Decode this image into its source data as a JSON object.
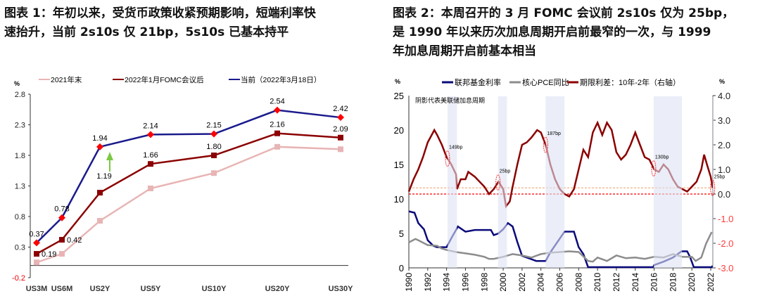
{
  "left": {
    "title": "图表 1：年初以来，受货币政策收紧预期影响，短端利率快速抬升，当前 2s10s 仅 21bp，5s10s 已基本持平",
    "title_lines": [
      "图表 1：年初以来，受货币政策收紧预期影响，短端利率快",
      "速抬升，当前 2s10s 仅 21bp，5s10s 已基本持平"
    ]
  },
  "right": {
    "title_lines": [
      "图表 2：本周召开的 3 月 FOMC 会议前 2s10s 仅为 25bp，",
      "是 1990 年以来历次加息周期开启前最窄的一次，与 1999",
      "年加息周期开启前基本相当"
    ]
  },
  "chart_data": [
    {
      "type": "line",
      "ylabel": "%",
      "ylim": [
        -0.2,
        2.8
      ],
      "yticks": [
        -0.2,
        0.3,
        0.8,
        1.3,
        1.8,
        2.3,
        2.8
      ],
      "legend": "top",
      "categories": [
        "US3M",
        "US6M",
        "US2Y",
        "US5Y",
        "US10Y",
        "US20Y",
        "US30Y"
      ],
      "series": [
        {
          "name": "2021年末",
          "color": "#e8b4b4",
          "marker": "square",
          "values": [
            0.05,
            0.19,
            0.73,
            1.26,
            1.51,
            1.94,
            1.9
          ]
        },
        {
          "name": "2022年1月FOMC会议后",
          "color": "#8b0000",
          "marker": "square",
          "values": [
            0.19,
            0.42,
            1.19,
            1.66,
            1.8,
            2.16,
            2.09
          ],
          "labels": [
            "0.19",
            "0.42",
            "1.19",
            "1.66",
            "1.80",
            "2.16",
            "2.09"
          ]
        },
        {
          "name": "当前（2022年3月18日）",
          "color": "#1a1a8c",
          "marker": "diamond",
          "marker_color": "#ff0000",
          "values": [
            0.37,
            0.78,
            1.94,
            2.14,
            2.15,
            2.54,
            2.42
          ],
          "labels": [
            "0.37",
            "0.78",
            "1.94",
            "2.14",
            "2.15",
            "2.54",
            "2.42"
          ]
        }
      ],
      "annotation": "green up arrow at US2Y",
      "arrow_color": "#7ac943"
    },
    {
      "type": "line",
      "ylabel_left": "%",
      "ylabel_right": "%",
      "ylim_left": [
        0,
        25
      ],
      "ylim_right": [
        -3,
        4
      ],
      "yticks_left": [
        0,
        5,
        10,
        15,
        20,
        25
      ],
      "yticks_right": [
        "-3.0",
        "-2.0",
        "-1.0",
        "0.0",
        "1.0",
        "2.0",
        "3.0",
        "4.0"
      ],
      "xticks": [
        "1990",
        "1992",
        "1994",
        "1996",
        "1998",
        "2000",
        "2002",
        "2004",
        "2006",
        "2008",
        "2010",
        "2012",
        "2014",
        "2016",
        "2018",
        "2020",
        "2022"
      ],
      "note": "阴影代表美联储加息周期",
      "shaded": [
        [
          1994.1,
          1995.1
        ],
        [
          1999.45,
          2000.4
        ],
        [
          2004.5,
          2006.5
        ],
        [
          2015.95,
          2018.95
        ],
        [
          2022.2,
          2022.3
        ]
      ],
      "annotations": [
        {
          "x": 1994.1,
          "text": "149bp"
        },
        {
          "x": 1999.45,
          "text": "25bp"
        },
        {
          "x": 2004.5,
          "text": "187bp"
        },
        {
          "x": 2015.95,
          "text": "130bp"
        },
        {
          "x": 2022.2,
          "text": "25bp"
        }
      ],
      "series": [
        {
          "name": "联邦基金利率",
          "axis": "left",
          "color": "#0a0a7a",
          "points": [
            [
              1990,
              8.2
            ],
            [
              1990.6,
              8
            ],
            [
              1991,
              6.5
            ],
            [
              1991.6,
              5.6
            ],
            [
              1992,
              4
            ],
            [
              1992.6,
              3.2
            ],
            [
              1993,
              3
            ],
            [
              1994,
              3
            ],
            [
              1994.5,
              4.3
            ],
            [
              1995,
              5.5
            ],
            [
              1995.2,
              6
            ],
            [
              1996,
              5.25
            ],
            [
              1997,
              5.5
            ],
            [
              1998.7,
              5.5
            ],
            [
              1999,
              4.75
            ],
            [
              1999.5,
              5
            ],
            [
              2000,
              5.6
            ],
            [
              2000.5,
              6.5
            ],
            [
              2001,
              6
            ],
            [
              2001.5,
              3.75
            ],
            [
              2002,
              1.75
            ],
            [
              2003,
              1.25
            ],
            [
              2003.5,
              1
            ],
            [
              2004.5,
              1
            ],
            [
              2005,
              2.25
            ],
            [
              2006,
              4.25
            ],
            [
              2006.5,
              5.25
            ],
            [
              2007.5,
              5.25
            ],
            [
              2008,
              3
            ],
            [
              2008.5,
              2
            ],
            [
              2009,
              0.1
            ],
            [
              2015.9,
              0.1
            ],
            [
              2016,
              0.4
            ],
            [
              2017,
              0.9
            ],
            [
              2018,
              1.5
            ],
            [
              2018.9,
              2.4
            ],
            [
              2019.5,
              2.4
            ],
            [
              2019.8,
              1.6
            ],
            [
              2020.2,
              0.1
            ],
            [
              2022.1,
              0.1
            ],
            [
              2022.2,
              0.3
            ]
          ]
        },
        {
          "name": "核心PCE同比",
          "axis": "left",
          "color": "#8c8c8c",
          "points": [
            [
              1990,
              3.7
            ],
            [
              1990.7,
              4.2
            ],
            [
              1991,
              4
            ],
            [
              1992,
              3.3
            ],
            [
              1993,
              3.2
            ],
            [
              1993.5,
              2.8
            ],
            [
              1994,
              2.6
            ],
            [
              1995,
              2.3
            ],
            [
              1996,
              2.1
            ],
            [
              1997,
              1.9
            ],
            [
              1998,
              1.6
            ],
            [
              1998.5,
              1.3
            ],
            [
              1999,
              1.3
            ],
            [
              2000,
              1.6
            ],
            [
              2001,
              2
            ],
            [
              2002,
              1.8
            ],
            [
              2003,
              1.5
            ],
            [
              2004,
              2
            ],
            [
              2005,
              2.2
            ],
            [
              2006,
              2.3
            ],
            [
              2007,
              2.4
            ],
            [
              2008,
              2.3
            ],
            [
              2009,
              1
            ],
            [
              2009.5,
              0.9
            ],
            [
              2010,
              1.5
            ],
            [
              2011,
              1
            ],
            [
              2012,
              1.8
            ],
            [
              2013,
              1.4
            ],
            [
              2014,
              1.5
            ],
            [
              2015,
              1.3
            ],
            [
              2016,
              1.6
            ],
            [
              2017,
              1.5
            ],
            [
              2018,
              2
            ],
            [
              2019,
              1.6
            ],
            [
              2020,
              1.6
            ],
            [
              2020.4,
              1
            ],
            [
              2021,
              1.5
            ],
            [
              2021.5,
              3.5
            ],
            [
              2022.1,
              5.2
            ]
          ]
        },
        {
          "name": "期限利差：10年-2年（右轴）",
          "axis": "right",
          "color": "#8b0000",
          "points": [
            [
              1990,
              0.1
            ],
            [
              1990.5,
              0.6
            ],
            [
              1991,
              1
            ],
            [
              1991.5,
              1.5
            ],
            [
              1992,
              2.1
            ],
            [
              1992.7,
              2.6
            ],
            [
              1993,
              2.4
            ],
            [
              1993.5,
              2
            ],
            [
              1994,
              1.5
            ],
            [
              1994.5,
              1.2
            ],
            [
              1995,
              0.8
            ],
            [
              1995.1,
              0.2
            ],
            [
              1995.5,
              0.6
            ],
            [
              1996,
              0.6
            ],
            [
              1996.3,
              0.9
            ],
            [
              1997,
              0.7
            ],
            [
              1998,
              0.3
            ],
            [
              1998.5,
              0
            ],
            [
              1999,
              0.2
            ],
            [
              1999.5,
              0.5
            ],
            [
              2000,
              0.2
            ],
            [
              2000.3,
              -0.5
            ],
            [
              2000.7,
              -0.3
            ],
            [
              2001,
              0.3
            ],
            [
              2001.5,
              1.2
            ],
            [
              2002,
              2
            ],
            [
              2002.5,
              2.1
            ],
            [
              2003,
              2.3
            ],
            [
              2003.6,
              2.6
            ],
            [
              2004,
              2.5
            ],
            [
              2004.5,
              2
            ],
            [
              2005,
              1.2
            ],
            [
              2005.5,
              0.6
            ],
            [
              2006,
              0.2
            ],
            [
              2006.5,
              0
            ],
            [
              2007,
              -0.1
            ],
            [
              2007.5,
              0.2
            ],
            [
              2008,
              1
            ],
            [
              2008.5,
              1.8
            ],
            [
              2009,
              1.5
            ],
            [
              2009.5,
              2.5
            ],
            [
              2010,
              2.9
            ],
            [
              2010.5,
              2.4
            ],
            [
              2011,
              2.9
            ],
            [
              2011.5,
              2.6
            ],
            [
              2012,
              1.7
            ],
            [
              2012.5,
              1.4
            ],
            [
              2013,
              1.6
            ],
            [
              2013.5,
              2
            ],
            [
              2014,
              2.5
            ],
            [
              2014.5,
              2
            ],
            [
              2015,
              1.5
            ],
            [
              2015.5,
              1.4
            ],
            [
              2016,
              1
            ],
            [
              2016.5,
              0.9
            ],
            [
              2017,
              1.2
            ],
            [
              2017.5,
              1
            ],
            [
              2018,
              0.6
            ],
            [
              2018.5,
              0.3
            ],
            [
              2019,
              0.2
            ],
            [
              2019.5,
              0.1
            ],
            [
              2020,
              0.3
            ],
            [
              2020.5,
              0.5
            ],
            [
              2021,
              1
            ],
            [
              2021.3,
              1.6
            ],
            [
              2021.6,
              1.2
            ],
            [
              2022,
              0.7
            ],
            [
              2022.2,
              0.25
            ]
          ]
        }
      ],
      "ref_lines": [
        {
          "axis": "right",
          "y": 0,
          "color": "#ff0000"
        },
        {
          "axis": "right",
          "y": 0.25,
          "color": "#f4b183"
        }
      ]
    }
  ]
}
